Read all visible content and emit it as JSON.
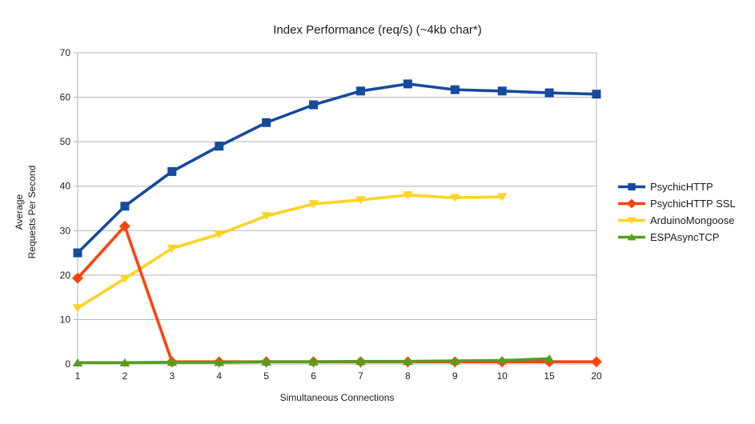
{
  "chart_data": {
    "type": "line",
    "title": "Index Performance (req/s) (~4kb char*)",
    "xlabel": "Simultaneous Connections",
    "ylabel": "Average Requests Per Second",
    "ylabel_lines": [
      "Average",
      "Requests Per Second"
    ],
    "categories": [
      "1",
      "2",
      "3",
      "4",
      "5",
      "6",
      "7",
      "8",
      "9",
      "10",
      "15",
      "20"
    ],
    "yticks": [
      0,
      10,
      20,
      30,
      40,
      50,
      60,
      70
    ],
    "ylim": [
      0,
      70
    ],
    "grid": "horizontal-only",
    "legend_position": "right",
    "series": [
      {
        "name": "PsychicHTTP",
        "color": "#164A9A",
        "marker": "square",
        "values": [
          25,
          35.5,
          43.3,
          49,
          54.3,
          58.3,
          61.4,
          63,
          61.7,
          61.4,
          61,
          60.7
        ]
      },
      {
        "name": "PsychicHTTP SSL",
        "color": "#FF420E",
        "marker": "diamond",
        "values": [
          19.3,
          31,
          0.5,
          0.5,
          0.5,
          0.5,
          0.5,
          0.5,
          0.5,
          0.5,
          0.5,
          0.5
        ]
      },
      {
        "name": "ArduinoMongoose",
        "color": "#FFD320",
        "marker": "triangle-down",
        "values": [
          12.6,
          19.2,
          26,
          29.2,
          33.3,
          36,
          36.9,
          38,
          37.4,
          37.6,
          null,
          null
        ]
      },
      {
        "name": "ESPAsyncTCP",
        "color": "#579D1C",
        "marker": "triangle-up",
        "values": [
          0.3,
          0.3,
          0.4,
          0.4,
          0.5,
          0.5,
          0.6,
          0.6,
          0.7,
          0.8,
          1.2,
          null
        ]
      }
    ],
    "colors": {
      "gridline": "#B3B3B3",
      "axis": "#B3B3B3",
      "text": "#1B1B1B",
      "background": "#FFFFFF"
    }
  }
}
